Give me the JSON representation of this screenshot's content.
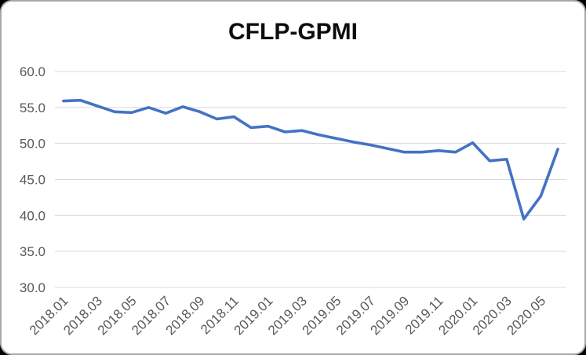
{
  "chart_data": {
    "type": "line",
    "title": "CFLP-GPMI",
    "xlabel": "",
    "ylabel": "",
    "ylim": [
      30.0,
      60.0
    ],
    "y_ticks": [
      60.0,
      55.0,
      50.0,
      45.0,
      40.0,
      35.0,
      30.0
    ],
    "y_tick_labels": [
      "60.0",
      "55.0",
      "50.0",
      "45.0",
      "40.0",
      "35.0",
      "30.0"
    ],
    "x_tick_interval": 2,
    "grid": true,
    "legend": "none",
    "x": [
      "2018.01",
      "2018.02",
      "2018.03",
      "2018.04",
      "2018.05",
      "2018.06",
      "2018.07",
      "2018.08",
      "2018.09",
      "2018.10",
      "2018.11",
      "2018.12",
      "2019.01",
      "2019.02",
      "2019.03",
      "2019.04",
      "2019.05",
      "2019.06",
      "2019.07",
      "2019.08",
      "2019.09",
      "2019.10",
      "2019.11",
      "2019.12",
      "2020.01",
      "2020.02",
      "2020.03",
      "2020.04",
      "2020.05",
      "2020.06"
    ],
    "series": [
      {
        "name": "CFLP-GPMI",
        "values": [
          55.9,
          56.0,
          55.2,
          54.4,
          54.3,
          55.0,
          54.2,
          55.1,
          54.4,
          53.4,
          53.7,
          52.2,
          52.4,
          51.6,
          51.8,
          51.2,
          50.7,
          50.2,
          49.8,
          49.3,
          48.8,
          48.8,
          49.0,
          48.8,
          50.1,
          47.6,
          47.8,
          39.5,
          42.7,
          49.2
        ]
      }
    ],
    "colors": {
      "line": "#4472C4",
      "gridline": "#D9D9D9",
      "tick_text": "#595959",
      "title_text": "#0d0d0d",
      "card_background": "#FFFFFF",
      "card_border": "#A9A9A9",
      "page_background": "#000000"
    }
  }
}
